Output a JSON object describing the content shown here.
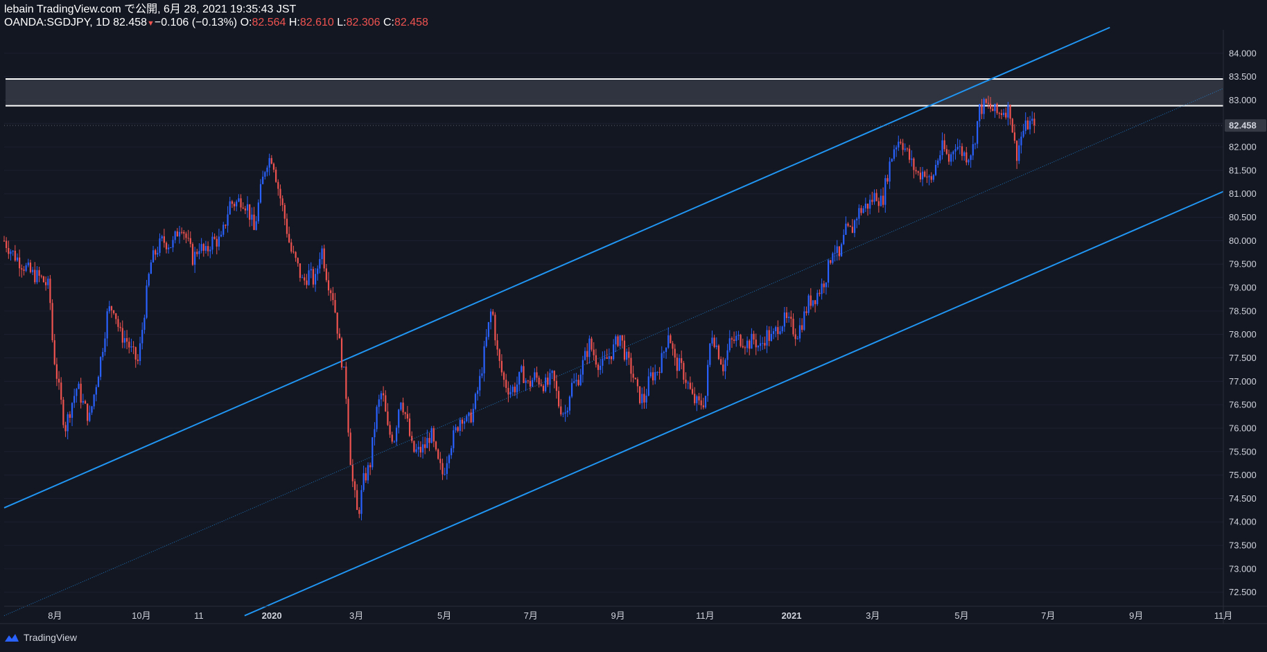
{
  "header": {
    "line1": "lebain TradingView.com で公開, 6月 28, 2021 19:35:43 JST",
    "symbol": "OANDA:SGDJPY, 1D",
    "last": "82.458",
    "down_arrow": "▼",
    "change": "−0.106 (−0.13%)",
    "o_label": "O:",
    "o_value": "82.564",
    "h_label": "H:",
    "h_value": "82.610",
    "l_label": "L:",
    "l_value": "82.306",
    "c_label": "C:",
    "c_value": "82.458"
  },
  "footer": {
    "brand": "TradingView",
    "logo_icon": "tradingview-logo-icon"
  },
  "colors": {
    "background": "#131722",
    "up": "#2962ff",
    "down": "#ef5350",
    "channel": "#2196f3",
    "zone_fill": "#363a45",
    "zone_border": "#ffffff",
    "price_tag_bg": "#363a45"
  },
  "chart_data": {
    "type": "candlestick",
    "symbol": "OANDA:SGDJPY",
    "interval": "1D",
    "y_ticks": [
      "84.000",
      "83.500",
      "83.000",
      "82.500",
      "82.000",
      "81.500",
      "81.000",
      "80.500",
      "80.000",
      "79.500",
      "79.000",
      "78.500",
      "78.000",
      "77.500",
      "77.000",
      "76.500",
      "76.000",
      "75.500",
      "75.000",
      "74.500",
      "74.000",
      "73.500",
      "73.000",
      "72.500"
    ],
    "ylim": [
      72.2,
      84.5
    ],
    "last_price": "82.458",
    "x_ticks": [
      {
        "label": "8月",
        "pos": 0.0417,
        "bold": false
      },
      {
        "label": "10月",
        "pos": 0.1125,
        "bold": false
      },
      {
        "label": "11",
        "pos": 0.1597,
        "bold": false
      },
      {
        "label": "2020",
        "pos": 0.2195,
        "bold": true
      },
      {
        "label": "3月",
        "pos": 0.2889,
        "bold": false
      },
      {
        "label": "5月",
        "pos": 0.3611,
        "bold": false
      },
      {
        "label": "7月",
        "pos": 0.4319,
        "bold": false
      },
      {
        "label": "9月",
        "pos": 0.5035,
        "bold": false
      },
      {
        "label": "11月",
        "pos": 0.575,
        "bold": false
      },
      {
        "label": "2021",
        "pos": 0.6458,
        "bold": true
      },
      {
        "label": "3月",
        "pos": 0.7125,
        "bold": false
      },
      {
        "label": "5月",
        "pos": 0.7854,
        "bold": false
      },
      {
        "label": "7月",
        "pos": 0.8563,
        "bold": false
      },
      {
        "label": "9月",
        "pos": 0.9285,
        "bold": false
      },
      {
        "label": "11月",
        "pos": 1.0,
        "bold": false
      }
    ],
    "price_path": [
      [
        0.0,
        80.0
      ],
      [
        0.008,
        79.7
      ],
      [
        0.015,
        79.5
      ],
      [
        0.022,
        79.3
      ],
      [
        0.03,
        79.2
      ],
      [
        0.037,
        79.0
      ],
      [
        0.04,
        77.7
      ],
      [
        0.045,
        76.8
      ],
      [
        0.05,
        76.0
      ],
      [
        0.055,
        76.5
      ],
      [
        0.06,
        76.9
      ],
      [
        0.065,
        76.5
      ],
      [
        0.07,
        76.2
      ],
      [
        0.075,
        76.9
      ],
      [
        0.08,
        77.6
      ],
      [
        0.085,
        78.5
      ],
      [
        0.09,
        78.6
      ],
      [
        0.095,
        78.0
      ],
      [
        0.1,
        77.9
      ],
      [
        0.105,
        77.6
      ],
      [
        0.11,
        77.4
      ],
      [
        0.115,
        78.5
      ],
      [
        0.12,
        79.5
      ],
      [
        0.125,
        79.8
      ],
      [
        0.13,
        80.0
      ],
      [
        0.138,
        79.9
      ],
      [
        0.145,
        80.4
      ],
      [
        0.15,
        80.0
      ],
      [
        0.155,
        79.6
      ],
      [
        0.16,
        79.9
      ],
      [
        0.165,
        79.7
      ],
      [
        0.17,
        80.0
      ],
      [
        0.178,
        80.0
      ],
      [
        0.185,
        80.8
      ],
      [
        0.19,
        80.8
      ],
      [
        0.195,
        80.9
      ],
      [
        0.2,
        80.7
      ],
      [
        0.205,
        80.2
      ],
      [
        0.21,
        81.0
      ],
      [
        0.215,
        81.7
      ],
      [
        0.22,
        81.8
      ],
      [
        0.225,
        81.1
      ],
      [
        0.23,
        80.5
      ],
      [
        0.235,
        79.8
      ],
      [
        0.24,
        79.5
      ],
      [
        0.245,
        79.1
      ],
      [
        0.25,
        79.3
      ],
      [
        0.255,
        79.1
      ],
      [
        0.26,
        79.9
      ],
      [
        0.265,
        79.2
      ],
      [
        0.27,
        78.8
      ],
      [
        0.275,
        77.8
      ],
      [
        0.28,
        76.9
      ],
      [
        0.285,
        75.0
      ],
      [
        0.29,
        74.1
      ],
      [
        0.295,
        74.9
      ],
      [
        0.3,
        75.2
      ],
      [
        0.305,
        76.3
      ],
      [
        0.31,
        76.8
      ],
      [
        0.315,
        75.9
      ],
      [
        0.32,
        75.8
      ],
      [
        0.325,
        76.7
      ],
      [
        0.33,
        76.2
      ],
      [
        0.335,
        75.5
      ],
      [
        0.34,
        75.5
      ],
      [
        0.345,
        75.6
      ],
      [
        0.35,
        75.9
      ],
      [
        0.355,
        75.3
      ],
      [
        0.36,
        75.0
      ],
      [
        0.365,
        75.6
      ],
      [
        0.37,
        75.9
      ],
      [
        0.375,
        76.3
      ],
      [
        0.38,
        76.1
      ],
      [
        0.385,
        76.4
      ],
      [
        0.39,
        77.0
      ],
      [
        0.395,
        77.8
      ],
      [
        0.4,
        78.6
      ],
      [
        0.405,
        77.5
      ],
      [
        0.41,
        77.0
      ],
      [
        0.415,
        76.8
      ],
      [
        0.42,
        76.9
      ],
      [
        0.425,
        77.2
      ],
      [
        0.43,
        76.9
      ],
      [
        0.435,
        77.1
      ],
      [
        0.44,
        77.0
      ],
      [
        0.445,
        76.9
      ],
      [
        0.45,
        77.1
      ],
      [
        0.455,
        76.5
      ],
      [
        0.46,
        76.3
      ],
      [
        0.465,
        76.9
      ],
      [
        0.47,
        77.0
      ],
      [
        0.475,
        77.4
      ],
      [
        0.48,
        77.8
      ],
      [
        0.485,
        77.5
      ],
      [
        0.49,
        77.3
      ],
      [
        0.495,
        77.5
      ],
      [
        0.5,
        77.7
      ],
      [
        0.505,
        78.0
      ],
      [
        0.51,
        77.5
      ],
      [
        0.515,
        77.2
      ],
      [
        0.52,
        76.7
      ],
      [
        0.525,
        76.6
      ],
      [
        0.53,
        77.1
      ],
      [
        0.535,
        77.2
      ],
      [
        0.54,
        77.5
      ],
      [
        0.545,
        78.1
      ],
      [
        0.55,
        77.4
      ],
      [
        0.555,
        77.3
      ],
      [
        0.56,
        77.0
      ],
      [
        0.565,
        76.6
      ],
      [
        0.57,
        76.5
      ],
      [
        0.575,
        76.6
      ],
      [
        0.58,
        78.1
      ],
      [
        0.585,
        77.7
      ],
      [
        0.59,
        77.3
      ],
      [
        0.595,
        77.8
      ],
      [
        0.6,
        77.9
      ],
      [
        0.605,
        77.9
      ],
      [
        0.61,
        77.8
      ],
      [
        0.615,
        77.9
      ],
      [
        0.62,
        77.7
      ],
      [
        0.625,
        78.0
      ],
      [
        0.63,
        77.9
      ],
      [
        0.635,
        78.2
      ],
      [
        0.64,
        78.3
      ],
      [
        0.645,
        78.2
      ],
      [
        0.65,
        78.0
      ],
      [
        0.655,
        78.3
      ],
      [
        0.66,
        78.7
      ],
      [
        0.665,
        78.8
      ],
      [
        0.67,
        79.0
      ],
      [
        0.675,
        79.3
      ],
      [
        0.68,
        79.9
      ],
      [
        0.685,
        79.6
      ],
      [
        0.69,
        80.2
      ],
      [
        0.695,
        80.2
      ],
      [
        0.7,
        80.6
      ],
      [
        0.705,
        80.7
      ],
      [
        0.71,
        80.8
      ],
      [
        0.715,
        81.0
      ],
      [
        0.72,
        80.8
      ],
      [
        0.725,
        81.5
      ],
      [
        0.73,
        82.0
      ],
      [
        0.735,
        82.2
      ],
      [
        0.74,
        81.9
      ],
      [
        0.745,
        81.6
      ],
      [
        0.75,
        81.4
      ],
      [
        0.755,
        81.5
      ],
      [
        0.76,
        81.2
      ],
      [
        0.765,
        81.7
      ],
      [
        0.77,
        82.0
      ],
      [
        0.775,
        81.7
      ],
      [
        0.78,
        82.1
      ],
      [
        0.785,
        81.9
      ],
      [
        0.79,
        81.8
      ],
      [
        0.795,
        82.0
      ],
      [
        0.8,
        82.8
      ],
      [
        0.805,
        82.9
      ],
      [
        0.81,
        82.8
      ],
      [
        0.815,
        82.7
      ],
      [
        0.82,
        82.8
      ],
      [
        0.825,
        82.8
      ],
      [
        0.83,
        81.8
      ],
      [
        0.835,
        82.3
      ],
      [
        0.84,
        82.5
      ],
      [
        0.845,
        82.458
      ]
    ],
    "overlays": {
      "resistance_zone": [
        82.88,
        83.45
      ],
      "channel_upper": [
        [
          0.0,
          74.3
        ],
        [
          0.9069,
          84.55
        ]
      ],
      "channel_lower": [
        [
          0.1972,
          72.0
        ],
        [
          1.0,
          81.05
        ]
      ],
      "channel_mid": [
        [
          0.0,
          72.0
        ],
        [
          1.0,
          83.25
        ]
      ]
    }
  }
}
